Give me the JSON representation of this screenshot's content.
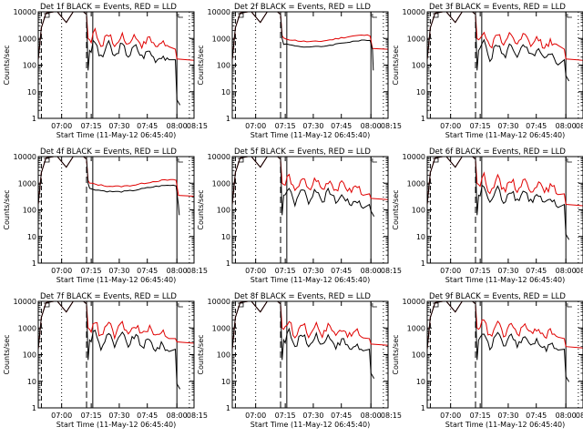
{
  "chart_data": [
    {
      "type": "line",
      "title": "Det 1f BLACK = Events, RED = LLD",
      "xlabel": "Start Time (11-May-12 06:45:40)",
      "ylabel": "Counts/sec",
      "yscale": "log",
      "ylim": [
        1,
        10000
      ],
      "y_tick_labels": [
        "1",
        "10",
        "100",
        "1000",
        "10000"
      ],
      "x_tick_labels": [
        "07:00",
        "07:15",
        "07:30",
        "07:45",
        "08:00",
        "08:15"
      ],
      "colors": {
        "black_series": "#000000",
        "red_series": "#e00000"
      },
      "profile": "spiky",
      "black_tail": 5,
      "red_tail": 170
    },
    {
      "type": "line",
      "title": "Det 2f BLACK = Events, RED = LLD",
      "xlabel": "Start Time (11-May-12 06:45:40)",
      "ylabel": "Counts/sec",
      "yscale": "log",
      "ylim": [
        1,
        10000
      ],
      "y_tick_labels": [
        "1",
        "10",
        "100",
        "1000",
        "10000"
      ],
      "x_tick_labels": [
        "07:00",
        "07:15",
        "07:30",
        "07:45",
        "08:00",
        "08:15"
      ],
      "colors": {
        "black_series": "#000000",
        "red_series": "#e00000"
      },
      "profile": "smooth",
      "black_tail": 380,
      "red_tail": 420
    },
    {
      "type": "line",
      "title": "Det 3f BLACK = Events, RED = LLD",
      "xlabel": "Start Time (11-May-12 06:45:40)",
      "ylabel": "Counts/sec",
      "yscale": "log",
      "ylim": [
        1,
        10000
      ],
      "y_tick_labels": [
        "1",
        "10",
        "100",
        "1000",
        "10000"
      ],
      "x_tick_labels": [
        "07:00",
        "07:15",
        "07:30",
        "07:45",
        "08:00",
        "08:15"
      ],
      "colors": {
        "black_series": "#000000",
        "red_series": "#e00000"
      },
      "profile": "spiky",
      "black_tail": 40,
      "red_tail": 170
    },
    {
      "type": "line",
      "title": "Det 4f BLACK = Events, RED = LLD",
      "xlabel": "Start Time (11-May-12 06:45:40)",
      "ylabel": "Counts/sec",
      "yscale": "log",
      "ylim": [
        1,
        10000
      ],
      "y_tick_labels": [
        "1",
        "10",
        "100",
        "1000",
        "10000"
      ],
      "x_tick_labels": [
        "07:00",
        "07:15",
        "07:30",
        "07:45",
        "08:00",
        "08:15"
      ],
      "colors": {
        "black_series": "#000000",
        "red_series": "#e00000"
      },
      "profile": "smooth",
      "black_tail": 150,
      "red_tail": 350
    },
    {
      "type": "line",
      "title": "Det 5f BLACK = Events, RED = LLD",
      "xlabel": "Start Time (11-May-12 06:45:40)",
      "ylabel": "Counts/sec",
      "yscale": "log",
      "ylim": [
        1,
        10000
      ],
      "y_tick_labels": [
        "1",
        "10",
        "100",
        "1000",
        "10000"
      ],
      "x_tick_labels": [
        "07:00",
        "07:15",
        "07:30",
        "07:45",
        "08:00",
        "08:15"
      ],
      "colors": {
        "black_series": "#000000",
        "red_series": "#e00000"
      },
      "profile": "spiky",
      "black_tail": 90,
      "red_tail": 270
    },
    {
      "type": "line",
      "title": "Det 6f BLACK = Events, RED = LLD",
      "xlabel": "Start Time (11-May-12 06:45:40)",
      "ylabel": "Counts/sec",
      "yscale": "log",
      "ylim": [
        1,
        10000
      ],
      "y_tick_labels": [
        "1",
        "10",
        "100",
        "1000",
        "10000"
      ],
      "x_tick_labels": [
        "07:00",
        "07:15",
        "07:30",
        "07:45",
        "08:00",
        "08:15"
      ],
      "colors": {
        "black_series": "#000000",
        "red_series": "#e00000"
      },
      "profile": "spiky",
      "black_tail": 12,
      "red_tail": 160
    },
    {
      "type": "line",
      "title": "Det 7f BLACK = Events, RED = LLD",
      "xlabel": "Start Time (11-May-12 06:45:40)",
      "ylabel": "Counts/sec",
      "yscale": "log",
      "ylim": [
        1,
        10000
      ],
      "y_tick_labels": [
        "1",
        "10",
        "100",
        "1000",
        "10000"
      ],
      "x_tick_labels": [
        "07:00",
        "07:15",
        "07:30",
        "07:45",
        "08:00",
        "08:15"
      ],
      "colors": {
        "black_series": "#000000",
        "red_series": "#e00000"
      },
      "profile": "spiky",
      "black_tail": 8,
      "red_tail": 300
    },
    {
      "type": "line",
      "title": "Det 8f BLACK = Events, RED = LLD",
      "xlabel": "Start Time (11-May-12 06:45:40)",
      "ylabel": "Counts/sec",
      "yscale": "log",
      "ylim": [
        1,
        10000
      ],
      "y_tick_labels": [
        "1",
        "10",
        "100",
        "1000",
        "10000"
      ],
      "x_tick_labels": [
        "07:00",
        "07:15",
        "07:30",
        "07:45",
        "08:00",
        "08:15"
      ],
      "colors": {
        "black_series": "#000000",
        "red_series": "#e00000"
      },
      "profile": "spiky",
      "black_tail": 20,
      "red_tail": 250
    },
    {
      "type": "line",
      "title": "Det 9f BLACK = Events, RED = LLD",
      "xlabel": "Start Time (11-May-12 06:45:40)",
      "ylabel": "Counts/sec",
      "yscale": "log",
      "ylim": [
        1,
        10000
      ],
      "y_tick_labels": [
        "1",
        "10",
        "100",
        "1000",
        "10000"
      ],
      "x_tick_labels": [
        "07:00",
        "07:15",
        "07:30",
        "07:45",
        "08:00",
        "08:15"
      ],
      "colors": {
        "black_series": "#000000",
        "red_series": "#e00000"
      },
      "profile": "spiky",
      "black_tail": 15,
      "red_tail": 200
    }
  ]
}
